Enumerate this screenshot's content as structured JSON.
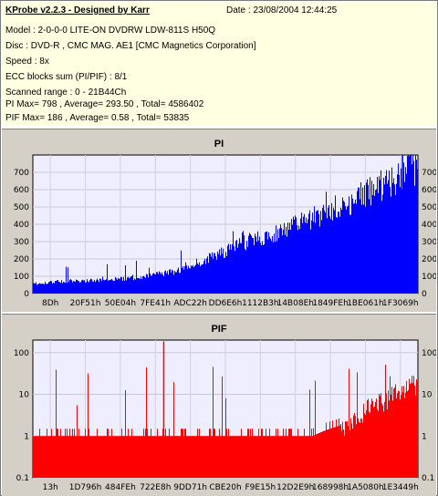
{
  "header": {
    "title": "KProbe v2.2.3 - Designed by Karr",
    "date": "Date : 23/08/2004 12:44:25",
    "lines": [
      "Model : 2-0-0-0 LITE-ON DVDRW LDW-811S   H50Q",
      "Disc : DVD-R , CMC MAG. AE1 [CMC Magnetics Corporation]",
      "Speed : 8x",
      "ECC blocks sum (PI/PIF) : 8/1",
      "Scanned range : 0 - 21B44Ch",
      "PI Max= 798 , Average= 293.50 , Total= 4586402",
      "PIF Max= 186 , Average= 0.58 , Total= 53835"
    ]
  },
  "colors": {
    "header_bg": "#ffffe1",
    "panel_bg": "#d4d0c8",
    "plot_bg": "#eeeeff",
    "pi_color": "#0000ff",
    "pif_color": "#ff0000"
  },
  "chart_data": [
    {
      "type": "bar",
      "title": "PI",
      "ylim": [
        0,
        800
      ],
      "ytick_labels": [
        "0",
        "100",
        "200",
        "300",
        "400",
        "500",
        "600",
        "700"
      ],
      "xtick_labels": [
        "8Dh",
        "20F51h",
        "50E04h",
        "7FE41h",
        "ADC22h",
        "DD6E6h",
        "1112B3h",
        "14B08Eh",
        "1849FEh",
        "1BE061h",
        "1F3069h"
      ],
      "grid": true,
      "series": [
        {
          "x": [
            "8Dh",
            "20F51h",
            "50E04h",
            "7FE41h",
            "ADC22h",
            "DD6E6h",
            "1112B3h",
            "14B08Eh",
            "1849FEh",
            "1BE061h",
            "1F3069h",
            "21B44Ch"
          ],
          "values": [
            60,
            75,
            80,
            95,
            130,
            205,
            300,
            365,
            450,
            540,
            650,
            760
          ],
          "max": 798,
          "average": 293.5
        }
      ]
    },
    {
      "type": "bar",
      "title": "PIF",
      "yscale": "log",
      "ylim": [
        0.1,
        200
      ],
      "ytick_labels": [
        "0.1",
        "1",
        "10",
        "100"
      ],
      "xtick_labels": [
        "13h",
        "1D796h",
        "484FEh",
        "722E8h",
        "9DD71h",
        "CBE20h",
        "F9E15h",
        "12D2E9h",
        "168998h",
        "1A5080h",
        "1E3449h"
      ],
      "grid": true,
      "series": [
        {
          "x": [
            "13h",
            "1D796h",
            "484FEh",
            "722E8h",
            "9DD71h",
            "CBE20h",
            "F9E15h",
            "12D2E9h",
            "168998h",
            "1A5080h",
            "1E3449h",
            "21B44Ch"
          ],
          "values": [
            1,
            1,
            1,
            1,
            1,
            1,
            1,
            1,
            1,
            2,
            10,
            25
          ],
          "max": 186,
          "average": 0.58
        }
      ]
    }
  ]
}
